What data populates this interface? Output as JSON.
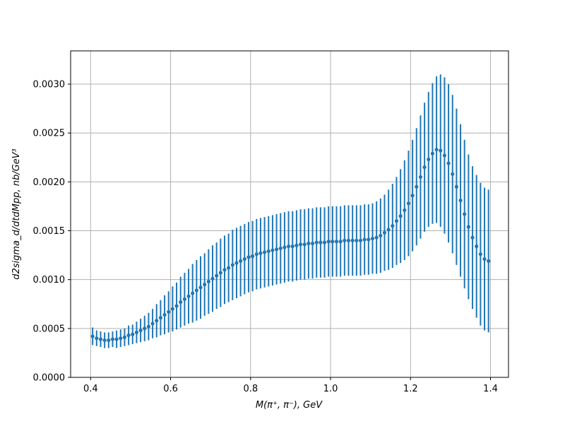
{
  "chart_data": {
    "type": "scatter",
    "title": "",
    "xlabel": "M(π⁺, π⁻), GeV",
    "ylabel": "d2sigma_d/dtdMpp, nb/GeV³",
    "xlim": [
      0.35,
      1.445
    ],
    "ylim": [
      0.0,
      0.00334
    ],
    "x_ticks": [
      0.4,
      0.6,
      0.8,
      1.0,
      1.2,
      1.4
    ],
    "x_tick_labels": [
      "0.4",
      "0.6",
      "0.8",
      "1.0",
      "1.2",
      "1.4"
    ],
    "y_ticks": [
      0.0,
      0.0005,
      0.001,
      0.0015,
      0.002,
      0.0025,
      0.003
    ],
    "y_tick_labels": [
      "0.0000",
      "0.0005",
      "0.0010",
      "0.0015",
      "0.0020",
      "0.0025",
      "0.0030"
    ],
    "grid": true,
    "legend": "none",
    "colors": {
      "series": "#1f77b4",
      "grid": "#b0b0b0"
    },
    "series": [
      {
        "x": [
          0.405,
          0.415,
          0.425,
          0.435,
          0.445,
          0.455,
          0.465,
          0.475,
          0.485,
          0.495,
          0.505,
          0.515,
          0.525,
          0.535,
          0.545,
          0.555,
          0.565,
          0.575,
          0.585,
          0.595,
          0.605,
          0.615,
          0.625,
          0.635,
          0.645,
          0.655,
          0.665,
          0.675,
          0.685,
          0.695,
          0.705,
          0.715,
          0.725,
          0.735,
          0.745,
          0.755,
          0.765,
          0.775,
          0.785,
          0.795,
          0.805,
          0.815,
          0.825,
          0.835,
          0.845,
          0.855,
          0.865,
          0.875,
          0.885,
          0.895,
          0.905,
          0.915,
          0.925,
          0.935,
          0.945,
          0.955,
          0.965,
          0.975,
          0.985,
          0.995,
          1.005,
          1.015,
          1.025,
          1.035,
          1.045,
          1.055,
          1.065,
          1.075,
          1.085,
          1.095,
          1.105,
          1.115,
          1.125,
          1.135,
          1.145,
          1.155,
          1.165,
          1.175,
          1.185,
          1.195,
          1.205,
          1.215,
          1.225,
          1.235,
          1.245,
          1.255,
          1.265,
          1.275,
          1.285,
          1.295,
          1.305,
          1.315,
          1.325,
          1.335,
          1.345,
          1.355,
          1.365,
          1.375,
          1.385,
          1.395
        ],
        "y": [
          0.00042,
          0.0004,
          0.00039,
          0.00038,
          0.00038,
          0.00039,
          0.00039,
          0.0004,
          0.00041,
          0.00043,
          0.00044,
          0.00046,
          0.00048,
          0.0005,
          0.00052,
          0.00055,
          0.00058,
          0.00061,
          0.00064,
          0.00067,
          0.0007,
          0.00073,
          0.00077,
          0.0008,
          0.00083,
          0.00086,
          0.00089,
          0.00092,
          0.00095,
          0.00098,
          0.00101,
          0.00104,
          0.00107,
          0.0011,
          0.00112,
          0.00115,
          0.00117,
          0.00119,
          0.00121,
          0.00123,
          0.00124,
          0.00126,
          0.00127,
          0.00128,
          0.00129,
          0.0013,
          0.00131,
          0.00132,
          0.00133,
          0.00134,
          0.00134,
          0.00135,
          0.00136,
          0.00136,
          0.00137,
          0.00137,
          0.00138,
          0.00138,
          0.00138,
          0.00139,
          0.00139,
          0.00139,
          0.00139,
          0.0014,
          0.0014,
          0.0014,
          0.0014,
          0.0014,
          0.00141,
          0.00141,
          0.00142,
          0.00143,
          0.00145,
          0.00148,
          0.00151,
          0.00155,
          0.0016,
          0.00165,
          0.00171,
          0.00178,
          0.00186,
          0.00195,
          0.00205,
          0.00215,
          0.00223,
          0.00229,
          0.00233,
          0.00232,
          0.00227,
          0.00219,
          0.00208,
          0.00195,
          0.00181,
          0.00167,
          0.00154,
          0.00143,
          0.00134,
          0.00126,
          0.00121,
          0.00119
        ],
        "err": [
          9e-05,
          8e-05,
          8e-05,
          8e-05,
          8e-05,
          8e-05,
          9e-05,
          9e-05,
          9e-05,
          0.0001,
          0.0001,
          0.00011,
          0.00012,
          0.00013,
          0.00014,
          0.00015,
          0.00017,
          0.00018,
          0.0002,
          0.00021,
          0.00023,
          0.00024,
          0.00026,
          0.00027,
          0.00028,
          0.0003,
          0.00031,
          0.00032,
          0.00032,
          0.00033,
          0.00034,
          0.00034,
          0.00035,
          0.00035,
          0.00035,
          0.00036,
          0.00036,
          0.00036,
          0.00036,
          0.00036,
          0.00036,
          0.00036,
          0.00036,
          0.00036,
          0.00036,
          0.00036,
          0.00036,
          0.00036,
          0.00036,
          0.00036,
          0.00036,
          0.00036,
          0.00036,
          0.00036,
          0.00036,
          0.00036,
          0.00036,
          0.00036,
          0.00036,
          0.00036,
          0.00036,
          0.00036,
          0.00036,
          0.00036,
          0.00036,
          0.00036,
          0.00036,
          0.00036,
          0.00036,
          0.00036,
          0.00036,
          0.00037,
          0.00038,
          0.00039,
          0.00041,
          0.00043,
          0.00045,
          0.00048,
          0.00051,
          0.00054,
          0.00057,
          0.0006,
          0.00063,
          0.00066,
          0.00069,
          0.00072,
          0.00075,
          0.00078,
          0.0008,
          0.00081,
          0.00081,
          0.0008,
          0.00078,
          0.00076,
          0.00074,
          0.00073,
          0.00073,
          0.00073,
          0.00073,
          0.00073
        ]
      }
    ]
  }
}
